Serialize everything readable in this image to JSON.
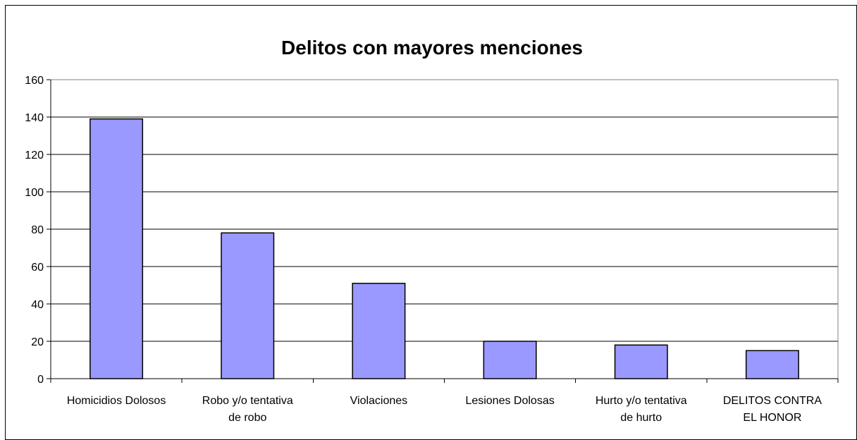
{
  "chart_data": {
    "type": "bar",
    "title": "Delitos con mayores menciones",
    "xlabel": "",
    "ylabel": "",
    "categories": [
      "Homicidios Dolosos",
      "Robo y/o tentativa de robo",
      "Violaciones",
      "Lesiones Dolosas",
      "Hurto y/o tentativa de hurto",
      "DELITOS CONTRA EL HONOR"
    ],
    "category_lines": [
      [
        "Homicidios Dolosos"
      ],
      [
        "Robo y/o tentativa",
        "de robo"
      ],
      [
        "Violaciones"
      ],
      [
        "Lesiones Dolosas"
      ],
      [
        "Hurto y/o tentativa",
        "de hurto"
      ],
      [
        "DELITOS CONTRA",
        "EL HONOR"
      ]
    ],
    "values": [
      139,
      78,
      51,
      20,
      18,
      15
    ],
    "ylim": [
      0,
      160
    ],
    "yticks": [
      0,
      20,
      40,
      60,
      80,
      100,
      120,
      140,
      160
    ],
    "grid": true,
    "legend": "none",
    "colors": {
      "bar_fill": "#9999ff",
      "bar_stroke": "#000000",
      "grid": "#000000",
      "plot_background": "#ffffff"
    }
  }
}
